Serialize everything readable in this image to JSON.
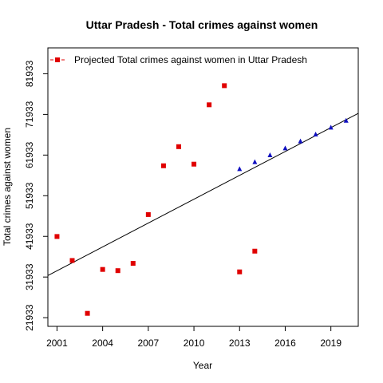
{
  "chart_data": {
    "type": "scatter",
    "title": "Uttar Pradesh  -  Total crimes against women",
    "xlabel": "Year",
    "ylabel": "Total crimes against women",
    "xlim": [
      2000.4,
      2020.8
    ],
    "ylim": [
      19800,
      88300
    ],
    "xticks": [
      "2001",
      "2004",
      "2007",
      "2010",
      "2013",
      "2016",
      "2019"
    ],
    "yticks": [
      "21933",
      "31933",
      "41933",
      "51933",
      "61933",
      "71933",
      "81933"
    ],
    "legend": {
      "position": "top-left",
      "label": "Projected  Total crimes against women  in  Uttar Pradesh"
    },
    "colors": {
      "observed": "#e00000",
      "projected": "#1010c0",
      "trend": "#000000"
    },
    "series": [
      {
        "kind": "observed",
        "marker": "square",
        "x": [
          2001,
          2002,
          2003,
          2004,
          2005,
          2006,
          2007,
          2008,
          2009,
          2010,
          2011,
          2012,
          2013,
          2014
        ],
        "y": [
          41900,
          36000,
          23000,
          33800,
          33500,
          35300,
          47300,
          59300,
          64000,
          59700,
          74300,
          79000,
          33200,
          38300
        ]
      },
      {
        "kind": "projected",
        "marker": "triangle",
        "x": [
          2013,
          2014,
          2015,
          2016,
          2017,
          2018,
          2019,
          2020
        ],
        "y": [
          58500,
          60200,
          61900,
          63600,
          65300,
          67000,
          68700,
          70400
        ]
      }
    ],
    "trend_line": {
      "x": [
        2000.4,
        2020.8
      ],
      "y": [
        32300,
        72200
      ]
    }
  }
}
